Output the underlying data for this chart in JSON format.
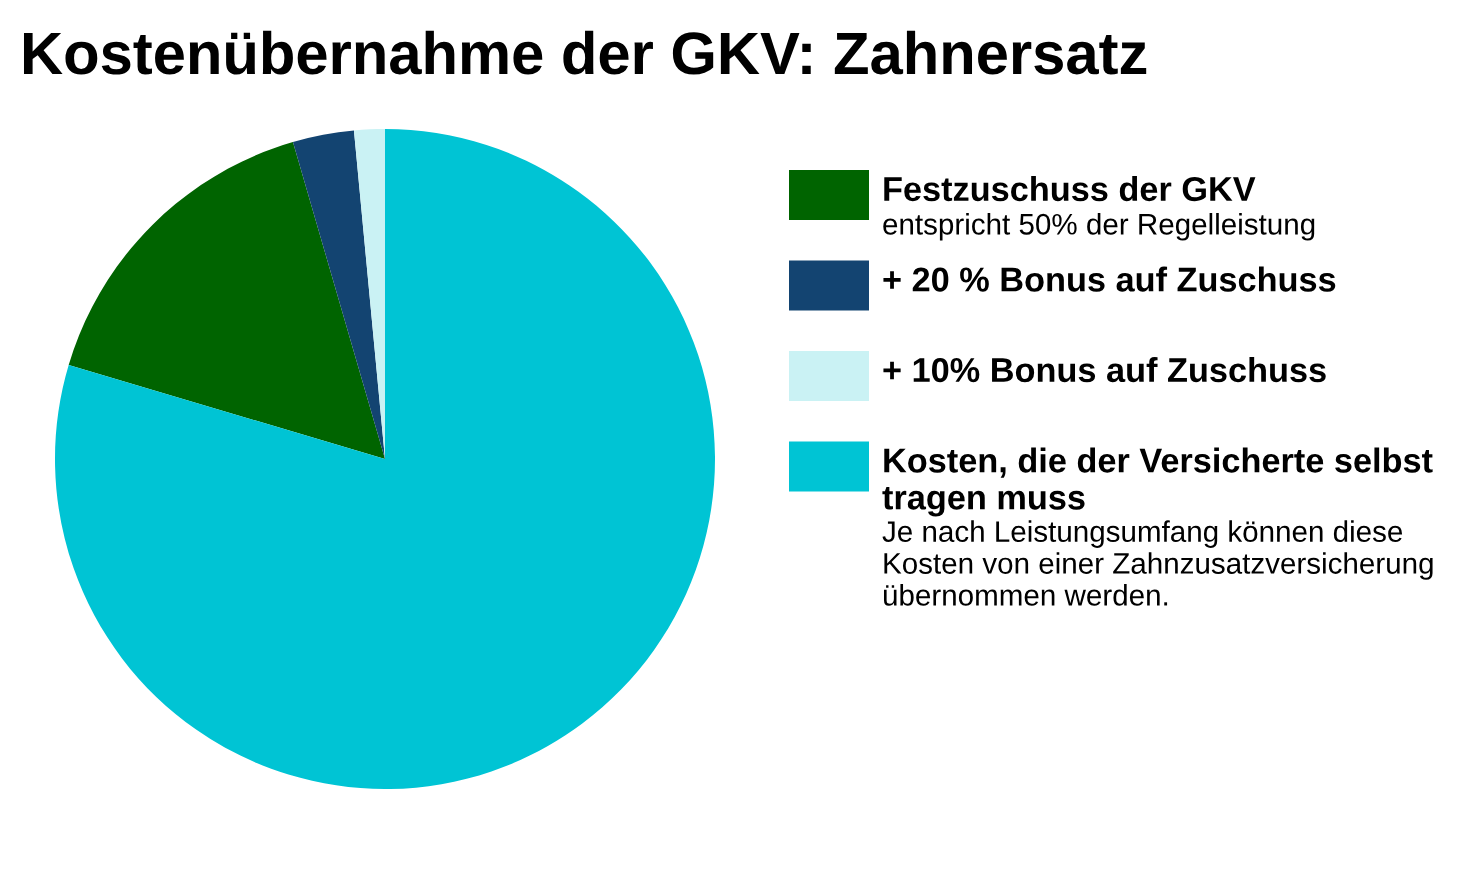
{
  "chart_data": {
    "type": "pie",
    "title": "Kostenübernahme der GKV: Zahnersatz",
    "categories": [
      "Festzuschuss der GKV",
      "+ 20 % Bonus auf Zuschuss",
      "+ 10% Bonus auf Zuschuss",
      "Kosten, die der Versicherte selbst tragen muss"
    ],
    "values": [
      15.9,
      3.0,
      1.5,
      79.6
    ],
    "colors": [
      "#006400",
      "#134471",
      "#caf2f4",
      "#00c4d4"
    ],
    "legend": "right",
    "annotations": [
      {
        "text": "entspricht 50% der Regelleistung",
        "x": "Festzuschuss der GKV"
      },
      {
        "text": "Je nach Leistungsumfang können diese Kosten von einer Zahnzusatzversicherung übernommen werden.",
        "x": "Kosten, die der Versicherte selbst tragen muss"
      }
    ]
  }
}
